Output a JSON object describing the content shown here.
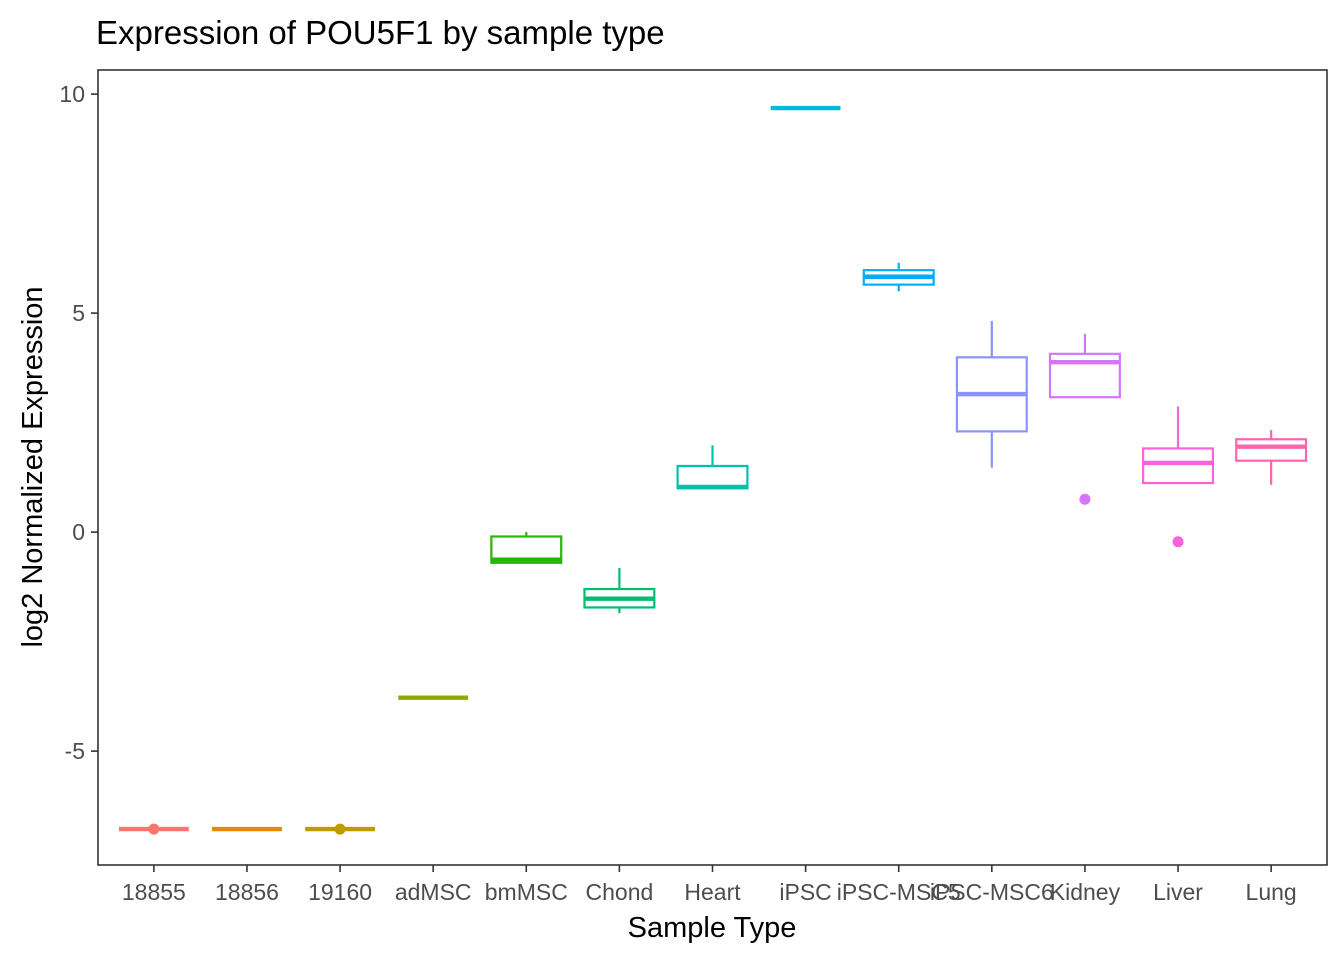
{
  "chart_data": {
    "type": "boxplot",
    "title": "Expression of POU5F1 by sample type",
    "xlabel": "Sample Type",
    "ylabel": "log2 Normalized Expression",
    "ylim": [
      -7.6,
      10.55
    ],
    "yticks": [
      -5,
      0,
      5,
      10
    ],
    "ytick_labels": [
      "-5",
      "0",
      "5",
      "10"
    ],
    "grid": false,
    "legend": "none",
    "categories": [
      "18855",
      "18856",
      "19160",
      "adMSC",
      "bmMSC",
      "Chond",
      "Heart",
      "iPSC",
      "iPSC-MSC5",
      "iPSC-MSC6",
      "Kidney",
      "Liver",
      "Lung"
    ],
    "boxes": [
      {
        "category": "18855",
        "color": "#F8766D",
        "min": -6.78,
        "q1": -6.78,
        "median": -6.78,
        "q3": -6.78,
        "max": -6.78,
        "outliers": [
          -6.78
        ]
      },
      {
        "category": "18856",
        "color": "#E18A00",
        "min": -6.78,
        "q1": -6.78,
        "median": -6.78,
        "q3": -6.78,
        "max": -6.78,
        "outliers": []
      },
      {
        "category": "19160",
        "color": "#BE9C00",
        "min": -6.78,
        "q1": -6.78,
        "median": -6.78,
        "q3": -6.78,
        "max": -6.78,
        "outliers": [
          -6.78
        ]
      },
      {
        "category": "adMSC",
        "color": "#8CAB00",
        "min": -3.78,
        "q1": -3.78,
        "median": -3.78,
        "q3": -3.78,
        "max": -3.78,
        "outliers": []
      },
      {
        "category": "bmMSC",
        "color": "#24B700",
        "min": -0.7,
        "q1": -0.7,
        "median": -0.63,
        "q3": -0.1,
        "max": 0.0,
        "outliers": []
      },
      {
        "category": "Chond",
        "color": "#00BE70",
        "min": -1.85,
        "q1": -1.72,
        "median": -1.52,
        "q3": -1.3,
        "max": -0.82,
        "outliers": []
      },
      {
        "category": "Heart",
        "color": "#00C1AB",
        "min": 1.0,
        "q1": 1.0,
        "median": 1.03,
        "q3": 1.51,
        "max": 1.98,
        "outliers": []
      },
      {
        "category": "iPSC",
        "color": "#00BBDA",
        "min": 9.68,
        "q1": 9.68,
        "median": 9.68,
        "q3": 9.68,
        "max": 9.68,
        "outliers": []
      },
      {
        "category": "iPSC-MSC5",
        "color": "#00ACFC",
        "min": 5.5,
        "q1": 5.65,
        "median": 5.83,
        "q3": 5.98,
        "max": 6.15,
        "outliers": []
      },
      {
        "category": "iPSC-MSC6",
        "color": "#8B93FF",
        "min": 1.47,
        "q1": 2.3,
        "median": 3.15,
        "q3": 3.99,
        "max": 4.82,
        "outliers": []
      },
      {
        "category": "Kidney",
        "color": "#D575FE",
        "min": 3.08,
        "q1": 3.08,
        "median": 3.88,
        "q3": 4.07,
        "max": 4.53,
        "outliers": [
          0.75
        ]
      },
      {
        "category": "Liver",
        "color": "#F962DD",
        "min": 1.12,
        "q1": 1.12,
        "median": 1.58,
        "q3": 1.91,
        "max": 2.87,
        "outliers": [
          -0.22
        ]
      },
      {
        "category": "Lung",
        "color": "#FF65AC",
        "min": 1.08,
        "q1": 1.63,
        "median": 1.95,
        "q3": 2.12,
        "max": 2.33,
        "outliers": []
      }
    ]
  }
}
